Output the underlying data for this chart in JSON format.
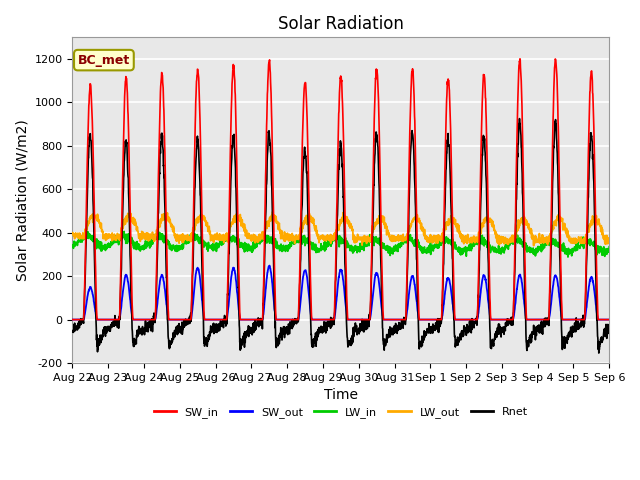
{
  "title": "Solar Radiation",
  "ylabel": "Solar Radiation (W/m2)",
  "xlabel": "Time",
  "ylim": [
    -200,
    1300
  ],
  "yticks": [
    -200,
    0,
    200,
    400,
    600,
    800,
    1000,
    1200
  ],
  "annotation": "BC_met",
  "x_tick_labels": [
    "Aug 22",
    "Aug 23",
    "Aug 24",
    "Aug 25",
    "Aug 26",
    "Aug 27",
    "Aug 28",
    "Aug 29",
    "Aug 30",
    "Aug 31",
    "Sep 1",
    "Sep 2",
    "Sep 3",
    "Sep 4",
    "Sep 5",
    "Sep 6"
  ],
  "n_days": 15,
  "colors": {
    "SW_in": "#ff0000",
    "SW_out": "#0000ff",
    "LW_in": "#00cc00",
    "LW_out": "#ffaa00",
    "Rnet": "#000000"
  },
  "legend_labels": [
    "SW_in",
    "SW_out",
    "LW_in",
    "LW_out",
    "Rnet"
  ],
  "background_color": "#ffffff",
  "ax_facecolor": "#e8e8e8",
  "title_fontsize": 12,
  "label_fontsize": 10,
  "tick_fontsize": 8,
  "peaks_swin": [
    1080,
    1110,
    1130,
    1150,
    1170,
    1190,
    1100,
    1120,
    1160,
    1150,
    1110,
    1130,
    1190,
    1200,
    1140
  ],
  "peaks_swout": [
    175,
    240,
    240,
    280,
    280,
    290,
    270,
    270,
    255,
    235,
    225,
    240,
    240,
    240,
    230
  ],
  "lw_in_base": 330,
  "lw_out_base": 390,
  "night_rnet": -80
}
